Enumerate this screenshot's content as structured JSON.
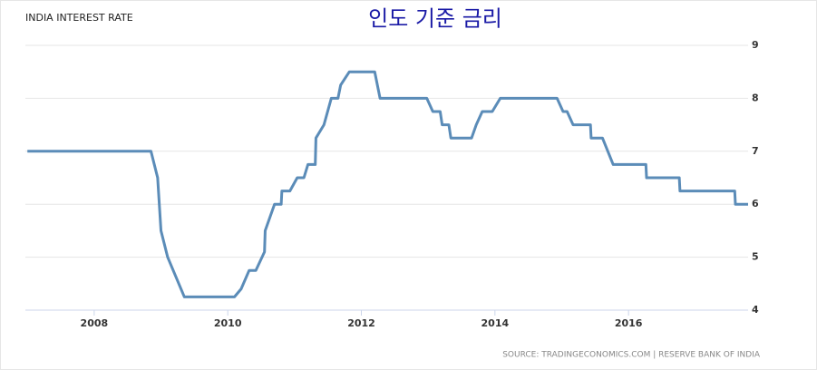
{
  "chart_data": {
    "type": "line",
    "title": "INDIA INTEREST RATE",
    "annotation": "인도 기준 금리",
    "source": "SOURCE: TRADINGECONOMICS.COM | RESERVE BANK OF INDIA",
    "x": [
      2007.0,
      2008.85,
      2008.95,
      2009.0,
      2009.1,
      2009.35,
      2010.1,
      2010.2,
      2010.32,
      2010.42,
      2010.55,
      2010.56,
      2010.7,
      2010.8,
      2010.81,
      2010.93,
      2011.04,
      2011.14,
      2011.2,
      2011.31,
      2011.32,
      2011.44,
      2011.55,
      2011.65,
      2011.69,
      2011.82,
      2012.2,
      2012.28,
      2012.98,
      2013.07,
      2013.18,
      2013.21,
      2013.31,
      2013.34,
      2013.65,
      2013.72,
      2013.81,
      2013.96,
      2014.08,
      2014.93,
      2015.02,
      2015.08,
      2015.17,
      2015.43,
      2015.44,
      2015.61,
      2015.77,
      2016.26,
      2016.27,
      2016.76,
      2016.77,
      2017.59,
      2017.6,
      2017.79
    ],
    "series": [
      {
        "name": "Interest rate",
        "color": "#5b8cb8",
        "values": [
          7,
          7,
          6.5,
          5.5,
          5.0,
          4.25,
          4.25,
          4.4,
          4.75,
          4.75,
          5.1,
          5.5,
          6.0,
          6.0,
          6.25,
          6.25,
          6.5,
          6.5,
          6.75,
          6.75,
          7.25,
          7.5,
          8.0,
          8.0,
          8.25,
          8.5,
          8.5,
          8.0,
          8.0,
          7.75,
          7.75,
          7.5,
          7.5,
          7.25,
          7.25,
          7.5,
          7.75,
          7.75,
          8.0,
          8.0,
          7.75,
          7.75,
          7.5,
          7.5,
          7.25,
          7.25,
          6.75,
          6.75,
          6.5,
          6.5,
          6.25,
          6.25,
          6.0,
          6.0
        ]
      }
    ],
    "xlim": [
      2006.97,
      2017.79
    ],
    "xticks": [
      2008,
      2010,
      2012,
      2014,
      2016
    ],
    "ylim": [
      4,
      9
    ],
    "yticks": [
      4,
      5,
      6,
      7,
      8,
      9
    ],
    "grid": true
  }
}
